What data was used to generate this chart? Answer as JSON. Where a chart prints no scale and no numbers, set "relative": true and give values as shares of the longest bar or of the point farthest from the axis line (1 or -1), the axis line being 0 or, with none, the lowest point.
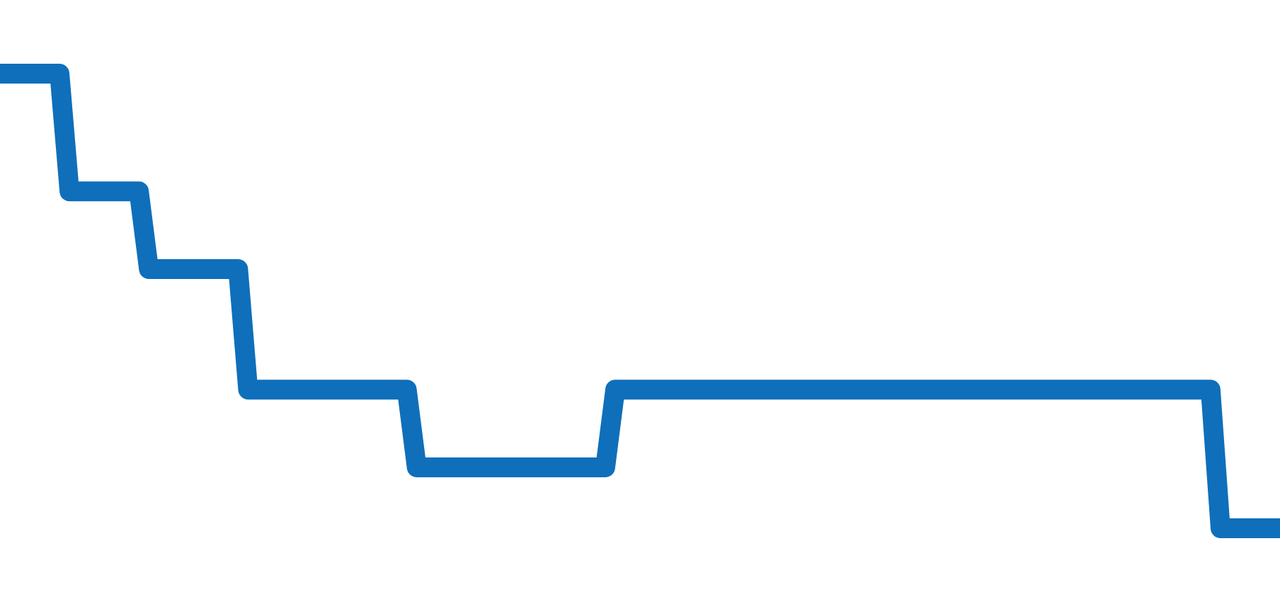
{
  "chart_data": {
    "type": "line",
    "relative": true,
    "line_style": "solid",
    "marker": "none",
    "categories": [
      null,
      null,
      null,
      null,
      null,
      null,
      null,
      null,
      null,
      null,
      null,
      null,
      null,
      null,
      null,
      null,
      null,
      null,
      null,
      null,
      null,
      null,
      null,
      null,
      null,
      null,
      null,
      null,
      null,
      null,
      null,
      null,
      null,
      null,
      null,
      null,
      null,
      null,
      null,
      null,
      null,
      null,
      null,
      null,
      null,
      null,
      null,
      null,
      null,
      null,
      null,
      null,
      null,
      null,
      null,
      null,
      null,
      null,
      null,
      null,
      null,
      null,
      null,
      null,
      null,
      null,
      null,
      null,
      null,
      null,
      null,
      null,
      null,
      null,
      null,
      null,
      null,
      null,
      null,
      null,
      null,
      null,
      null,
      null,
      null,
      null,
      null,
      null,
      null,
      null,
      null,
      null,
      null,
      null,
      null,
      null,
      null,
      null,
      null,
      null,
      null,
      null,
      null,
      null,
      null,
      null,
      null,
      null,
      null,
      null,
      null,
      null,
      null,
      null,
      null,
      null,
      null,
      null,
      null,
      null,
      null,
      null,
      null,
      null,
      null,
      null,
      null,
      null,
      null,
      null
    ],
    "series": [
      {
        "color": "#0f6fba",
        "values": [
          1,
          1,
          1,
          1,
          1,
          1,
          1,
          0.741,
          0.741,
          0.741,
          0.741,
          0.741,
          0.741,
          0.741,
          0.741,
          0.57,
          0.57,
          0.57,
          0.57,
          0.57,
          0.57,
          0.57,
          0.57,
          0.57,
          0.57,
          0.305,
          0.305,
          0.305,
          0.305,
          0.305,
          0.305,
          0.305,
          0.305,
          0.305,
          0.305,
          0.305,
          0.305,
          0.305,
          0.305,
          0.305,
          0.305,
          0.305,
          0.134,
          0.134,
          0.134,
          0.134,
          0.134,
          0.134,
          0.134,
          0.134,
          0.134,
          0.134,
          0.134,
          0.134,
          0.134,
          0.134,
          0.134,
          0.134,
          0.134,
          0.134,
          0.134,
          0.134,
          0.305,
          0.305,
          0.305,
          0.305,
          0.305,
          0.305,
          0.305,
          0.305,
          0.305,
          0.305,
          0.305,
          0.305,
          0.305,
          0.305,
          0.305,
          0.305,
          0.305,
          0.305,
          0.305,
          0.305,
          0.305,
          0.305,
          0.305,
          0.305,
          0.305,
          0.305,
          0.305,
          0.305,
          0.305,
          0.305,
          0.305,
          0.305,
          0.305,
          0.305,
          0.305,
          0.305,
          0.305,
          0.305,
          0.305,
          0.305,
          0.305,
          0.305,
          0.305,
          0.305,
          0.305,
          0.305,
          0.305,
          0.305,
          0.305,
          0.305,
          0.305,
          0.305,
          0.305,
          0.305,
          0.305,
          0.305,
          0.305,
          0.305,
          0.305,
          0.305,
          0.305,
          0,
          0,
          0,
          0,
          0,
          0,
          0
        ]
      }
    ]
  }
}
